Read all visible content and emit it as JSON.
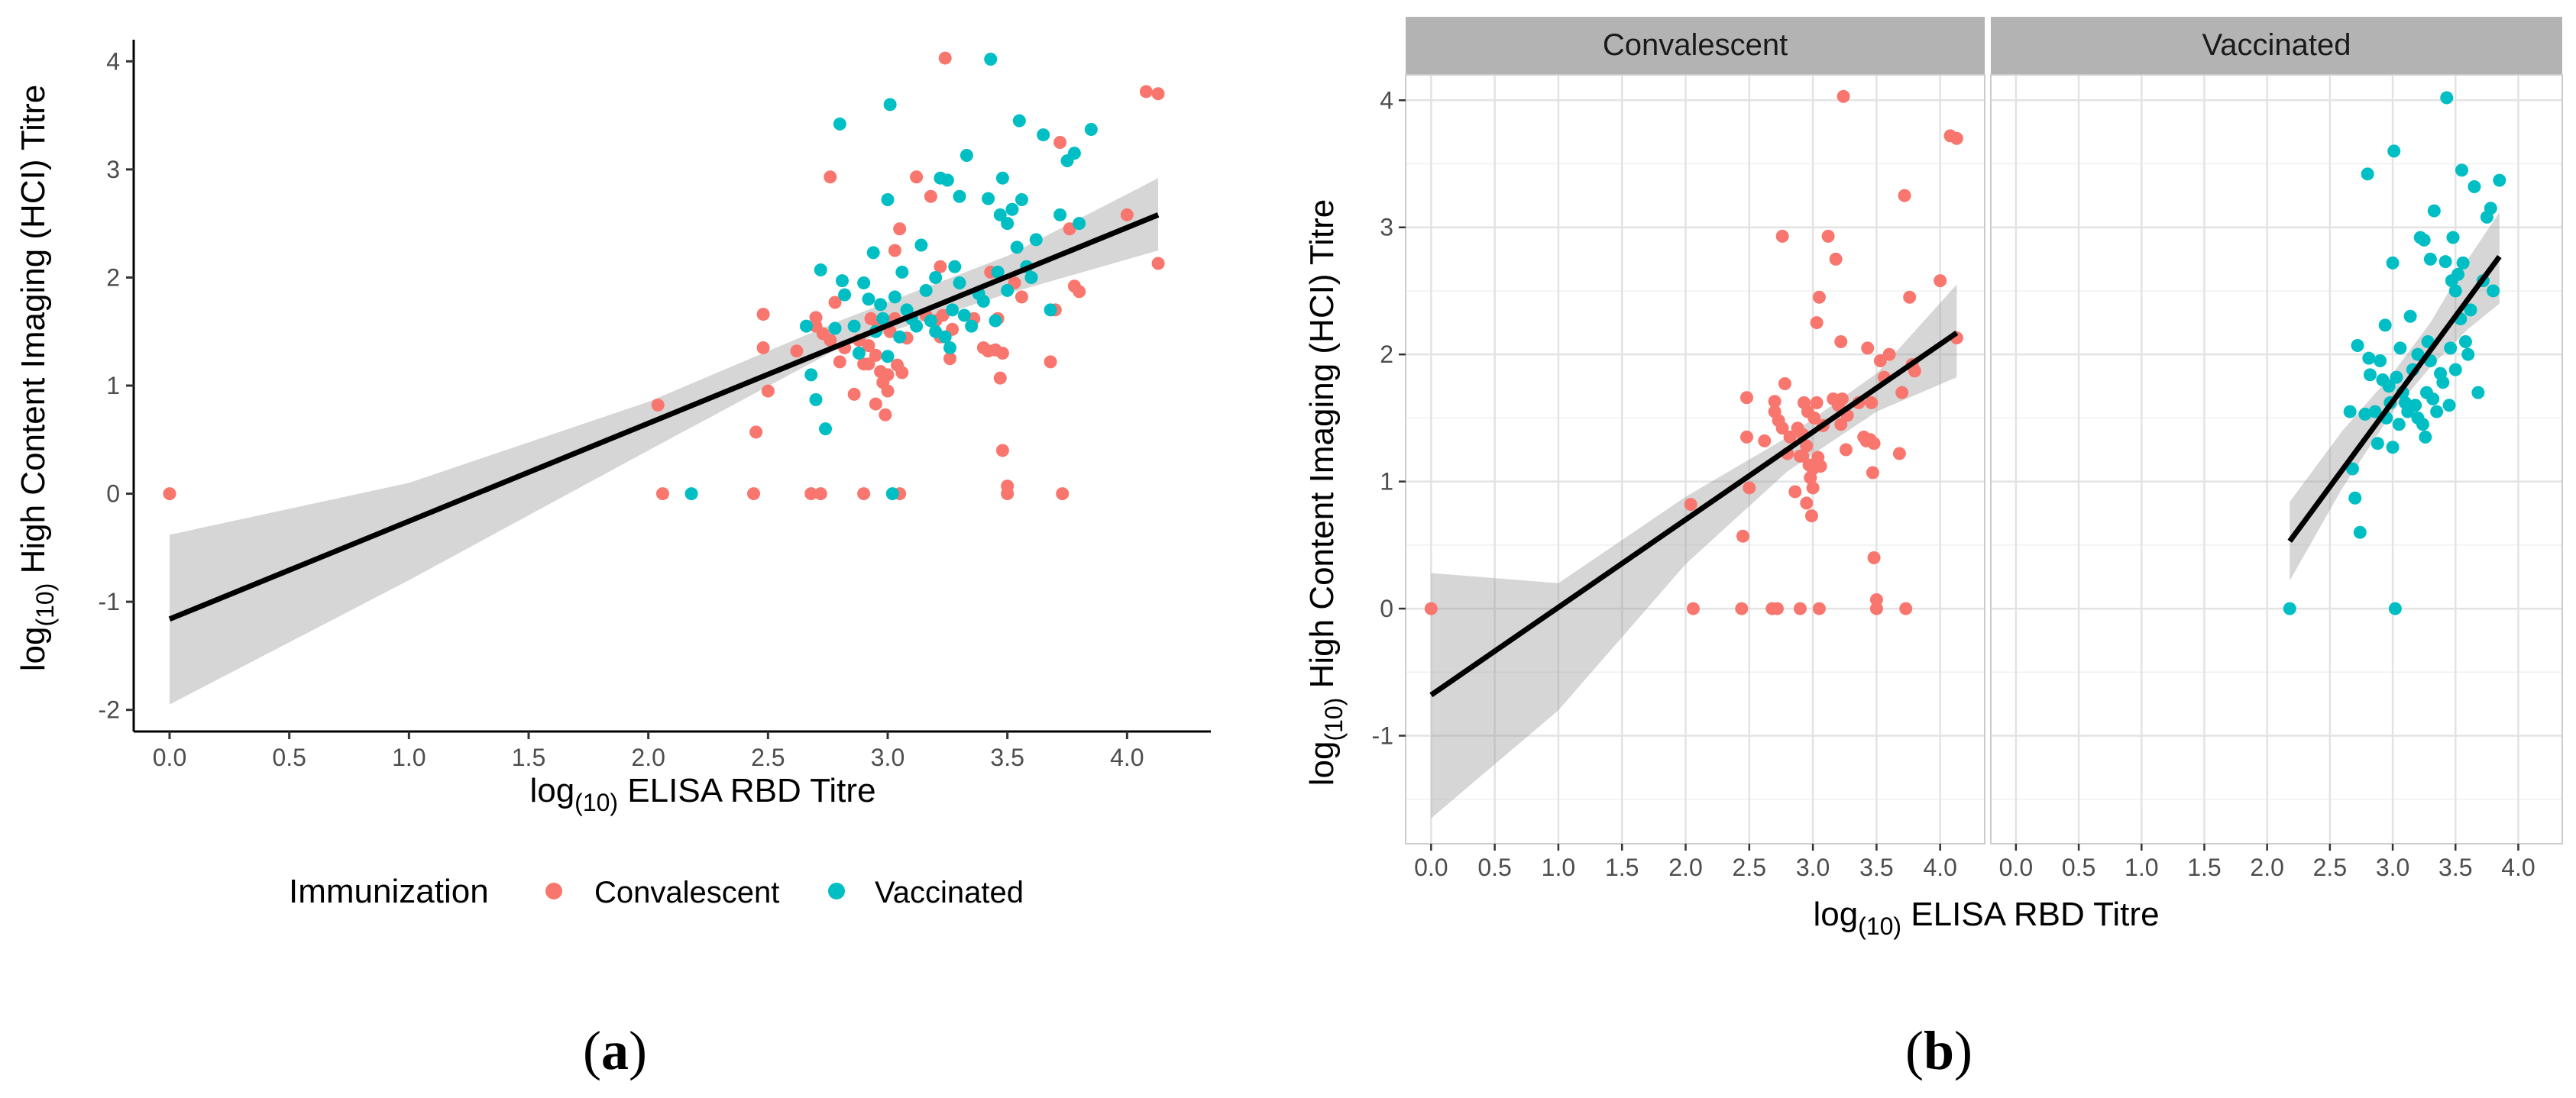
{
  "chart_data": [
    {
      "panel": "a",
      "type": "scatter",
      "xlabel_main": "log",
      "xlabel_sub": "(10)",
      "xlabel_rest": " ELISA RBD Titre",
      "ylabel_main": "log",
      "ylabel_sub": "(10)",
      "ylabel_rest": " High Content Imaging (HCI) Titre",
      "xlim": [
        -0.15,
        4.35
      ],
      "ylim": [
        -2.2,
        4.2
      ],
      "x_ticks": [
        0.0,
        0.5,
        1.0,
        1.5,
        2.0,
        2.5,
        3.0,
        3.5,
        4.0
      ],
      "x_tick_labels": [
        "0.0",
        "0.5",
        "1.0",
        "1.5",
        "2.0",
        "2.5",
        "3.0",
        "3.5",
        "4.0"
      ],
      "y_ticks": [
        -2,
        -1,
        0,
        1,
        2,
        3,
        4
      ],
      "y_tick_labels": [
        "-2",
        "-1",
        "0",
        "1",
        "2",
        "3",
        "4"
      ],
      "grid": false,
      "legend": {
        "title": "Immunization",
        "position": "bottom",
        "entries": [
          {
            "label": "Convalescent",
            "color": "#F8766D"
          },
          {
            "label": "Vaccinated",
            "color": "#00BFC4"
          }
        ]
      },
      "fit": {
        "x": [
          0.0,
          4.13
        ],
        "y": [
          -1.16,
          2.58
        ]
      },
      "ci_band": {
        "x": [
          0.0,
          1.0,
          2.0,
          2.8,
          3.5,
          4.13
        ],
        "lower": [
          -1.95,
          -0.8,
          0.4,
          1.35,
          1.85,
          2.25
        ],
        "upper": [
          -0.38,
          0.1,
          0.85,
          1.6,
          2.2,
          2.92
        ]
      },
      "series": [
        {
          "name": "Convalescent",
          "color": "#F8766D",
          "points": [
            [
              0.0,
              0.0
            ],
            [
              2.04,
              0.82
            ],
            [
              2.06,
              0.0
            ],
            [
              2.44,
              0.0
            ],
            [
              2.45,
              0.57
            ],
            [
              2.48,
              1.66
            ],
            [
              2.48,
              1.35
            ],
            [
              2.5,
              0.95
            ],
            [
              2.62,
              1.32
            ],
            [
              2.68,
              0.0
            ],
            [
              2.7,
              1.63
            ],
            [
              2.7,
              1.55
            ],
            [
              2.72,
              0.0
            ],
            [
              2.73,
              1.48
            ],
            [
              2.76,
              2.93
            ],
            [
              2.76,
              1.42
            ],
            [
              2.78,
              1.77
            ],
            [
              2.8,
              1.22
            ],
            [
              2.82,
              1.35
            ],
            [
              2.86,
              0.92
            ],
            [
              2.88,
              1.42
            ],
            [
              2.9,
              1.2
            ],
            [
              2.9,
              0.0
            ],
            [
              2.92,
              1.37
            ],
            [
              2.92,
              1.2
            ],
            [
              2.93,
              1.62
            ],
            [
              2.95,
              1.28
            ],
            [
              2.95,
              0.83
            ],
            [
              2.96,
              1.55
            ],
            [
              2.97,
              1.13
            ],
            [
              2.98,
              1.03
            ],
            [
              2.99,
              0.73
            ],
            [
              3.0,
              0.95
            ],
            [
              3.0,
              1.1
            ],
            [
              3.01,
              1.5
            ],
            [
              3.03,
              1.62
            ],
            [
              3.03,
              2.25
            ],
            [
              3.04,
              1.19
            ],
            [
              3.05,
              0.0
            ],
            [
              3.05,
              2.45
            ],
            [
              3.06,
              1.12
            ],
            [
              3.08,
              1.44
            ],
            [
              3.12,
              2.93
            ],
            [
              3.16,
              1.65
            ],
            [
              3.18,
              2.75
            ],
            [
              3.2,
              1.6
            ],
            [
              3.22,
              2.1
            ],
            [
              3.22,
              1.45
            ],
            [
              3.23,
              1.65
            ],
            [
              3.24,
              4.03
            ],
            [
              3.26,
              1.25
            ],
            [
              3.27,
              1.52
            ],
            [
              3.36,
              1.62
            ],
            [
              3.4,
              1.35
            ],
            [
              3.42,
              1.32
            ],
            [
              3.43,
              2.05
            ],
            [
              3.45,
              1.33
            ],
            [
              3.46,
              1.62
            ],
            [
              3.47,
              1.07
            ],
            [
              3.48,
              1.3
            ],
            [
              3.48,
              0.4
            ],
            [
              3.5,
              0.07
            ],
            [
              3.5,
              0.0
            ],
            [
              3.53,
              1.95
            ],
            [
              3.56,
              1.82
            ],
            [
              3.6,
              2.0
            ],
            [
              3.68,
              1.22
            ],
            [
              3.7,
              1.7
            ],
            [
              3.72,
              3.25
            ],
            [
              3.73,
              0.0
            ],
            [
              3.76,
              2.45
            ],
            [
              3.78,
              1.92
            ],
            [
              3.8,
              1.87
            ],
            [
              4.0,
              2.58
            ],
            [
              4.08,
              3.72
            ],
            [
              4.13,
              3.7
            ],
            [
              4.13,
              2.13
            ]
          ]
        },
        {
          "name": "Vaccinated",
          "color": "#00BFC4",
          "points": [
            [
              2.18,
              0.0
            ],
            [
              2.66,
              1.55
            ],
            [
              2.68,
              1.1
            ],
            [
              2.7,
              0.87
            ],
            [
              2.72,
              2.07
            ],
            [
              2.74,
              0.6
            ],
            [
              2.78,
              1.53
            ],
            [
              2.8,
              3.42
            ],
            [
              2.81,
              1.97
            ],
            [
              2.82,
              1.84
            ],
            [
              2.86,
              1.55
            ],
            [
              2.88,
              1.3
            ],
            [
              2.9,
              1.95
            ],
            [
              2.92,
              1.8
            ],
            [
              2.94,
              2.23
            ],
            [
              2.95,
              1.5
            ],
            [
              2.97,
              1.75
            ],
            [
              2.98,
              1.62
            ],
            [
              3.0,
              1.27
            ],
            [
              3.0,
              2.72
            ],
            [
              3.01,
              3.6
            ],
            [
              3.02,
              0.0
            ],
            [
              3.03,
              1.82
            ],
            [
              3.05,
              1.45
            ],
            [
              3.06,
              2.05
            ],
            [
              3.08,
              1.7
            ],
            [
              3.1,
              1.62
            ],
            [
              3.12,
              1.55
            ],
            [
              3.14,
              2.3
            ],
            [
              3.16,
              1.88
            ],
            [
              3.18,
              1.6
            ],
            [
              3.2,
              1.5
            ],
            [
              3.2,
              2.0
            ],
            [
              3.22,
              2.92
            ],
            [
              3.24,
              1.45
            ],
            [
              3.25,
              2.9
            ],
            [
              3.26,
              1.35
            ],
            [
              3.27,
              1.7
            ],
            [
              3.28,
              2.1
            ],
            [
              3.3,
              2.75
            ],
            [
              3.3,
              1.95
            ],
            [
              3.32,
              1.65
            ],
            [
              3.33,
              3.13
            ],
            [
              3.35,
              1.55
            ],
            [
              3.38,
              1.85
            ],
            [
              3.4,
              1.78
            ],
            [
              3.42,
              2.73
            ],
            [
              3.43,
              4.02
            ],
            [
              3.45,
              1.6
            ],
            [
              3.46,
              2.05
            ],
            [
              3.47,
              2.58
            ],
            [
              3.48,
              2.92
            ],
            [
              3.5,
              2.5
            ],
            [
              3.5,
              1.88
            ],
            [
              3.52,
              2.63
            ],
            [
              3.54,
              2.28
            ],
            [
              3.55,
              3.45
            ],
            [
              3.56,
              2.72
            ],
            [
              3.58,
              2.1
            ],
            [
              3.6,
              2.0
            ],
            [
              3.62,
              2.35
            ],
            [
              3.65,
              3.32
            ],
            [
              3.68,
              1.7
            ],
            [
              3.72,
              2.58
            ],
            [
              3.75,
              3.08
            ],
            [
              3.78,
              3.15
            ],
            [
              3.8,
              2.5
            ],
            [
              3.85,
              3.37
            ]
          ]
        }
      ]
    },
    {
      "panel": "b",
      "type": "scatter",
      "facets": [
        "Convalescent",
        "Vaccinated"
      ],
      "xlabel_main": "log",
      "xlabel_sub": "(10)",
      "xlabel_rest": " ELISA RBD Titre",
      "ylabel_main": "log",
      "ylabel_sub": "(10)",
      "ylabel_rest": " High Content Imaging (HCI) Titre",
      "xlim": [
        -0.2,
        4.35
      ],
      "ylim": [
        -1.85,
        4.2
      ],
      "x_ticks": [
        0.0,
        0.5,
        1.0,
        1.5,
        2.0,
        2.5,
        3.0,
        3.5,
        4.0
      ],
      "x_tick_labels": [
        "0.0",
        "0.5",
        "1.0",
        "1.5",
        "2.0",
        "2.5",
        "3.0",
        "3.5",
        "4.0"
      ],
      "y_ticks": [
        -1,
        0,
        1,
        2,
        3,
        4
      ],
      "y_tick_labels": [
        "-1",
        "0",
        "1",
        "2",
        "3",
        "4"
      ],
      "grid": true,
      "fits": [
        {
          "facet": "Convalescent",
          "x": [
            0.0,
            4.13
          ],
          "y": [
            -0.68,
            2.17
          ],
          "band_x": [
            0.0,
            1.0,
            2.0,
            2.8,
            3.5,
            4.13
          ],
          "band_lower": [
            -1.65,
            -0.8,
            0.35,
            1.08,
            1.55,
            1.82
          ],
          "band_upper": [
            0.28,
            0.2,
            0.88,
            1.35,
            1.85,
            2.55
          ]
        },
        {
          "facet": "Vaccinated",
          "x": [
            2.18,
            3.85
          ],
          "y": [
            0.53,
            2.77
          ],
          "band_x": [
            2.18,
            2.6,
            3.0,
            3.3,
            3.6,
            3.85
          ],
          "band_lower": [
            0.22,
            0.95,
            1.55,
            1.9,
            2.2,
            2.4
          ],
          "band_upper": [
            0.84,
            1.4,
            1.85,
            2.25,
            2.75,
            3.12
          ]
        }
      ],
      "series": [
        {
          "name": "Convalescent",
          "color": "#F8766D",
          "facet": 0
        },
        {
          "name": "Vaccinated",
          "color": "#00BFC4",
          "facet": 1
        }
      ]
    }
  ],
  "labels": {
    "a_open": "(",
    "a_letter": "a",
    "a_close": ")",
    "b_open": "(",
    "b_letter": "b",
    "b_close": ")"
  }
}
